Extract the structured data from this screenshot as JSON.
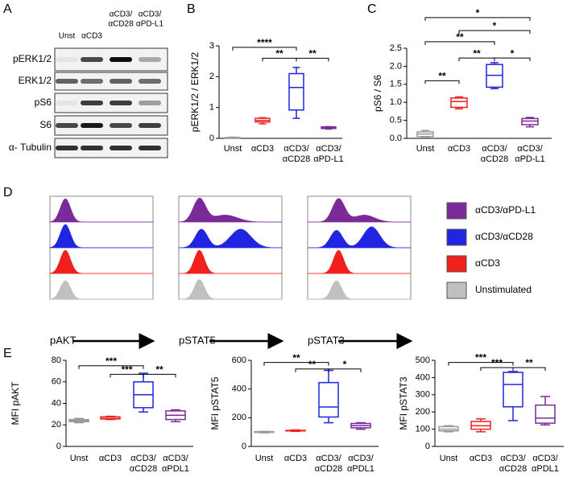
{
  "blot": {
    "panel": "A",
    "lanes": [
      [
        "Unst"
      ],
      [
        "αCD3"
      ],
      [
        "αCD3/",
        "αCD28"
      ],
      [
        "αCD3/",
        "αPD-L1"
      ]
    ],
    "rows": [
      "pERK1/2",
      "ERK1/2",
      "pS6",
      "S6",
      "α- Tubulin"
    ]
  },
  "histograms": {
    "panel": "D",
    "markers": [
      "pAKT",
      "pSTAT5",
      "pSTAT3"
    ],
    "legend": [
      {
        "name": "αCD3/αPD-L1",
        "color": "#7b2a9a"
      },
      {
        "name": "αCD3/αCD28",
        "color": "#1f25e0"
      },
      {
        "name": "αCD3",
        "color": "#f0201c"
      },
      {
        "name": "Unstimulated",
        "color": "#c0c0c0"
      }
    ]
  },
  "chart_data": [
    {
      "type": "box",
      "panel": "B",
      "ylabel": "pERK1/2 / ERK1/2",
      "categories": [
        [
          "Unst"
        ],
        [
          "αCD3"
        ],
        [
          "αCD3/",
          "αCD28"
        ],
        [
          "αCD3/",
          "αPD-L1"
        ]
      ],
      "colors": [
        "#999999",
        "#f0201c",
        "#1f25e0",
        "#7b2a9a"
      ],
      "boxes": [
        {
          "min": 0,
          "q1": 0.01,
          "median": 0.02,
          "q3": 0.03,
          "max": 0.04
        },
        {
          "min": 0.47,
          "q1": 0.53,
          "median": 0.58,
          "q3": 0.65,
          "max": 0.67
        },
        {
          "min": 0.65,
          "q1": 0.92,
          "median": 1.65,
          "q3": 2.1,
          "max": 2.3
        },
        {
          "min": 0.3,
          "q1": 0.32,
          "median": 0.35,
          "q3": 0.37,
          "max": 0.38
        }
      ],
      "ylim": [
        0,
        3
      ],
      "yticks": [
        0,
        1,
        2,
        3
      ],
      "annotations": [
        {
          "text": "****",
          "x": [
            0,
            2
          ],
          "y": 2.95
        },
        {
          "text": "**",
          "x": [
            1,
            2
          ],
          "y": 2.6
        },
        {
          "text": "**",
          "x": [
            2,
            3
          ],
          "y": 2.6
        }
      ]
    },
    {
      "type": "box",
      "panel": "C",
      "ylabel": "pS6 / S6",
      "categories": [
        [
          "Unst"
        ],
        [
          "αCD3"
        ],
        [
          "αCD3/",
          "αCD28"
        ],
        [
          "αCD3/",
          "αPD-L1"
        ]
      ],
      "colors": [
        "#999999",
        "#f0201c",
        "#1f25e0",
        "#7b2a9a"
      ],
      "boxes": [
        {
          "min": 0.02,
          "q1": 0.05,
          "median": 0.12,
          "q3": 0.18,
          "max": 0.22
        },
        {
          "min": 0.82,
          "q1": 0.86,
          "median": 1.02,
          "q3": 1.12,
          "max": 1.15
        },
        {
          "min": 1.38,
          "q1": 1.42,
          "median": 1.75,
          "q3": 2.05,
          "max": 2.1
        },
        {
          "min": 0.32,
          "q1": 0.38,
          "median": 0.48,
          "q3": 0.55,
          "max": 0.58
        }
      ],
      "ylim": [
        0,
        2.5
      ],
      "yticks": [
        {
          "value": 0,
          "label": "0.0"
        },
        0.5,
        {
          "value": 1,
          "label": "1.0"
        },
        1.5,
        {
          "value": 2,
          "label": "2.0"
        },
        2.5
      ],
      "annotations": [
        {
          "text": "**",
          "x": [
            0,
            1
          ],
          "y": 1.6
        },
        {
          "text": "**",
          "x": [
            1,
            2
          ],
          "y": 2.23
        },
        {
          "text": "*",
          "x": [
            2,
            3
          ],
          "y": 2.23
        },
        {
          "text": "**",
          "x": [
            0,
            2
          ],
          "y": 2.68
        },
        {
          "text": "*",
          "x": [
            1,
            3
          ],
          "y": 2.99
        },
        {
          "text": "*",
          "x": [
            0,
            3
          ],
          "y": 3.35
        }
      ]
    },
    {
      "type": "box",
      "panel": "E",
      "ylabel": "MFI pAKT",
      "categories": [
        [
          "Unst"
        ],
        [
          "αCD3"
        ],
        [
          "αCD3/",
          "αCD28"
        ],
        [
          "αCD3/",
          "αPDL1"
        ]
      ],
      "colors": [
        "#999999",
        "#f0201c",
        "#1f25e0",
        "#7b2a9a"
      ],
      "boxes": [
        {
          "min": 22,
          "q1": 23,
          "median": 24,
          "q3": 25,
          "max": 26
        },
        {
          "min": 25,
          "q1": 25.5,
          "median": 26,
          "q3": 27.5,
          "max": 28
        },
        {
          "min": 32,
          "q1": 36,
          "median": 48,
          "q3": 60,
          "max": 68
        },
        {
          "min": 23,
          "q1": 25,
          "median": 29,
          "q3": 33,
          "max": 34
        }
      ],
      "ylim": [
        0,
        80
      ],
      "yticks": [
        0,
        20,
        40,
        60,
        80
      ],
      "annotations": [
        {
          "text": "***",
          "x": [
            0,
            2
          ],
          "y": 75
        },
        {
          "text": "***",
          "x": [
            1,
            2
          ],
          "y": 67
        },
        {
          "text": "**",
          "x": [
            2,
            3
          ],
          "y": 67
        }
      ]
    },
    {
      "type": "box",
      "ylabel": "MFI pSTAT5",
      "categories": [
        [
          "Unst"
        ],
        [
          "αCD3"
        ],
        [
          "αCD3/",
          "αCD28"
        ],
        [
          "αCD3/",
          "αPDL1"
        ]
      ],
      "colors": [
        "#999999",
        "#f0201c",
        "#1f25e0",
        "#7b2a9a"
      ],
      "boxes": [
        {
          "min": 95,
          "q1": 98,
          "median": 100,
          "q3": 103,
          "max": 105
        },
        {
          "min": 105,
          "q1": 108,
          "median": 110,
          "q3": 112,
          "max": 115
        },
        {
          "min": 165,
          "q1": 205,
          "median": 275,
          "q3": 445,
          "max": 530
        },
        {
          "min": 120,
          "q1": 130,
          "median": 145,
          "q3": 160,
          "max": 165
        }
      ],
      "ylim": [
        0,
        600
      ],
      "yticks": [
        0,
        200,
        400,
        600
      ],
      "annotations": [
        {
          "text": "**",
          "x": [
            0,
            2
          ],
          "y": 585
        },
        {
          "text": "**",
          "x": [
            1,
            2
          ],
          "y": 540
        },
        {
          "text": "*",
          "x": [
            2,
            3
          ],
          "y": 540
        }
      ]
    },
    {
      "type": "box",
      "ylabel": "MFI pSTAT3",
      "categories": [
        [
          "Unst"
        ],
        [
          "αCD3"
        ],
        [
          "αCD3/",
          "αCD28"
        ],
        [
          "αCD3/",
          "αPDL1"
        ]
      ],
      "colors": [
        "#999999",
        "#f0201c",
        "#1f25e0",
        "#7b2a9a"
      ],
      "boxes": [
        {
          "min": 85,
          "q1": 90,
          "median": 100,
          "q3": 115,
          "max": 120
        },
        {
          "min": 85,
          "q1": 100,
          "median": 120,
          "q3": 145,
          "max": 160
        },
        {
          "min": 150,
          "q1": 230,
          "median": 360,
          "q3": 430,
          "max": 435
        },
        {
          "min": 125,
          "q1": 135,
          "median": 165,
          "q3": 240,
          "max": 290
        }
      ],
      "ylim": [
        0,
        500
      ],
      "yticks": [
        0,
        100,
        200,
        300,
        400,
        500
      ],
      "annotations": [
        {
          "text": "***",
          "x": [
            0,
            2
          ],
          "y": 488
        },
        {
          "text": "***",
          "x": [
            1,
            2
          ],
          "y": 458
        },
        {
          "text": "**",
          "x": [
            2,
            3
          ],
          "y": 458
        }
      ]
    }
  ]
}
